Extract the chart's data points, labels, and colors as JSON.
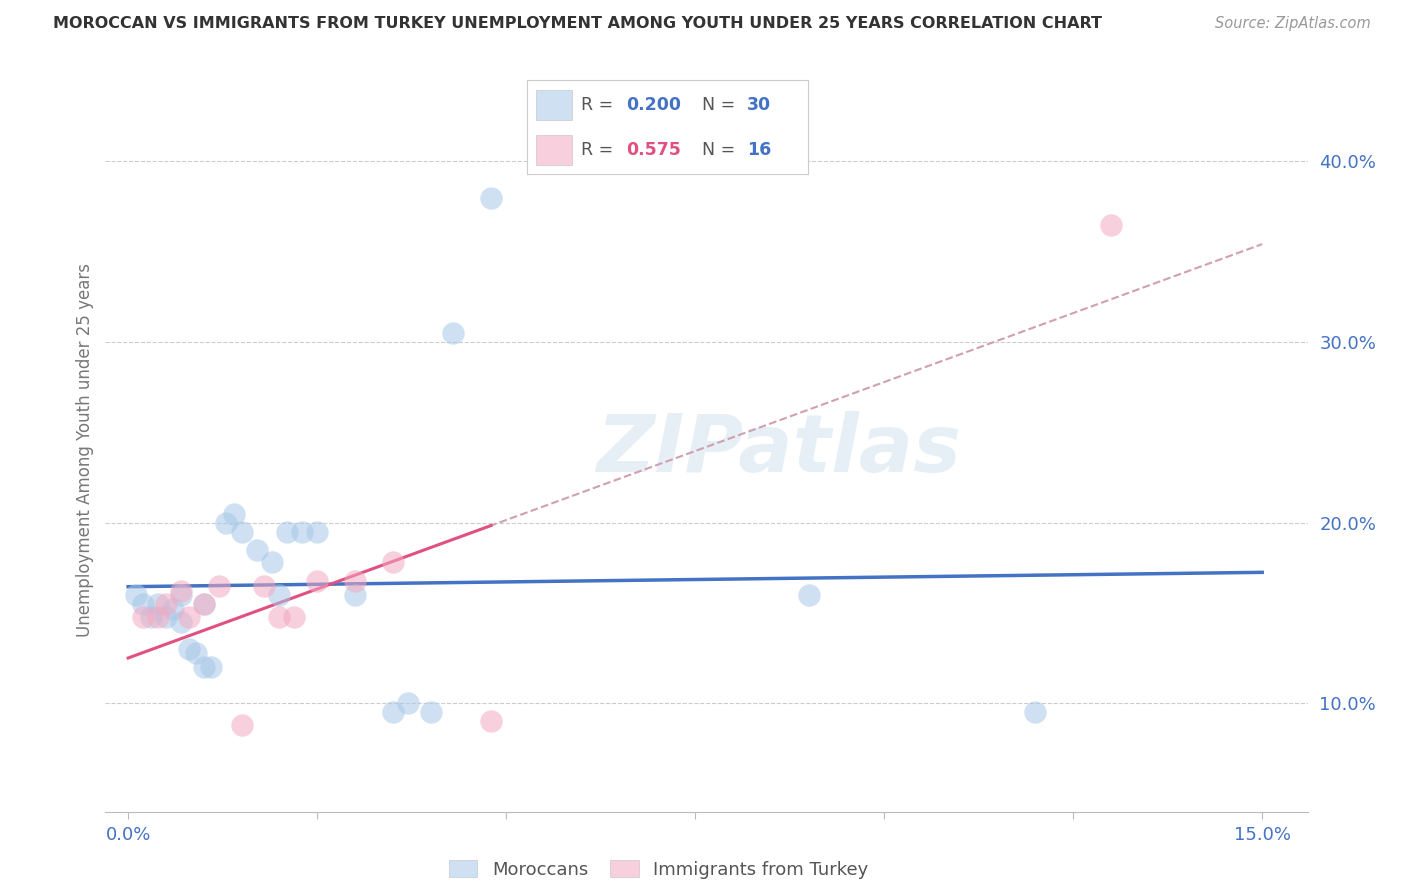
{
  "title": "MOROCCAN VS IMMIGRANTS FROM TURKEY UNEMPLOYMENT AMONG YOUTH UNDER 25 YEARS CORRELATION CHART",
  "source": "Source: ZipAtlas.com",
  "ylabel": "Unemployment Among Youth under 25 years",
  "xlim": [
    -0.003,
    0.156
  ],
  "ylim": [
    0.04,
    0.44
  ],
  "blue_color": "#a8c8e8",
  "pink_color": "#f4a8c0",
  "blue_line_color": "#4472c4",
  "pink_line_color": "#e05080",
  "dashed_line_color": "#d0a0b0",
  "moroccan_x": [
    0.001,
    0.002,
    0.003,
    0.004,
    0.005,
    0.006,
    0.007,
    0.007,
    0.008,
    0.009,
    0.01,
    0.01,
    0.011,
    0.013,
    0.014,
    0.015,
    0.017,
    0.019,
    0.02,
    0.021,
    0.023,
    0.025,
    0.03,
    0.035,
    0.037,
    0.04,
    0.043,
    0.048,
    0.09,
    0.12
  ],
  "moroccan_y": [
    0.16,
    0.155,
    0.148,
    0.155,
    0.148,
    0.152,
    0.145,
    0.16,
    0.13,
    0.128,
    0.12,
    0.155,
    0.12,
    0.2,
    0.205,
    0.195,
    0.185,
    0.178,
    0.16,
    0.195,
    0.195,
    0.195,
    0.16,
    0.095,
    0.1,
    0.095,
    0.305,
    0.38,
    0.16,
    0.095
  ],
  "turkey_x": [
    0.002,
    0.004,
    0.005,
    0.007,
    0.008,
    0.01,
    0.012,
    0.015,
    0.018,
    0.02,
    0.022,
    0.025,
    0.03,
    0.035,
    0.048,
    0.13
  ],
  "turkey_y": [
    0.148,
    0.148,
    0.155,
    0.162,
    0.148,
    0.155,
    0.165,
    0.088,
    0.165,
    0.148,
    0.148,
    0.168,
    0.168,
    0.178,
    0.09,
    0.365
  ]
}
